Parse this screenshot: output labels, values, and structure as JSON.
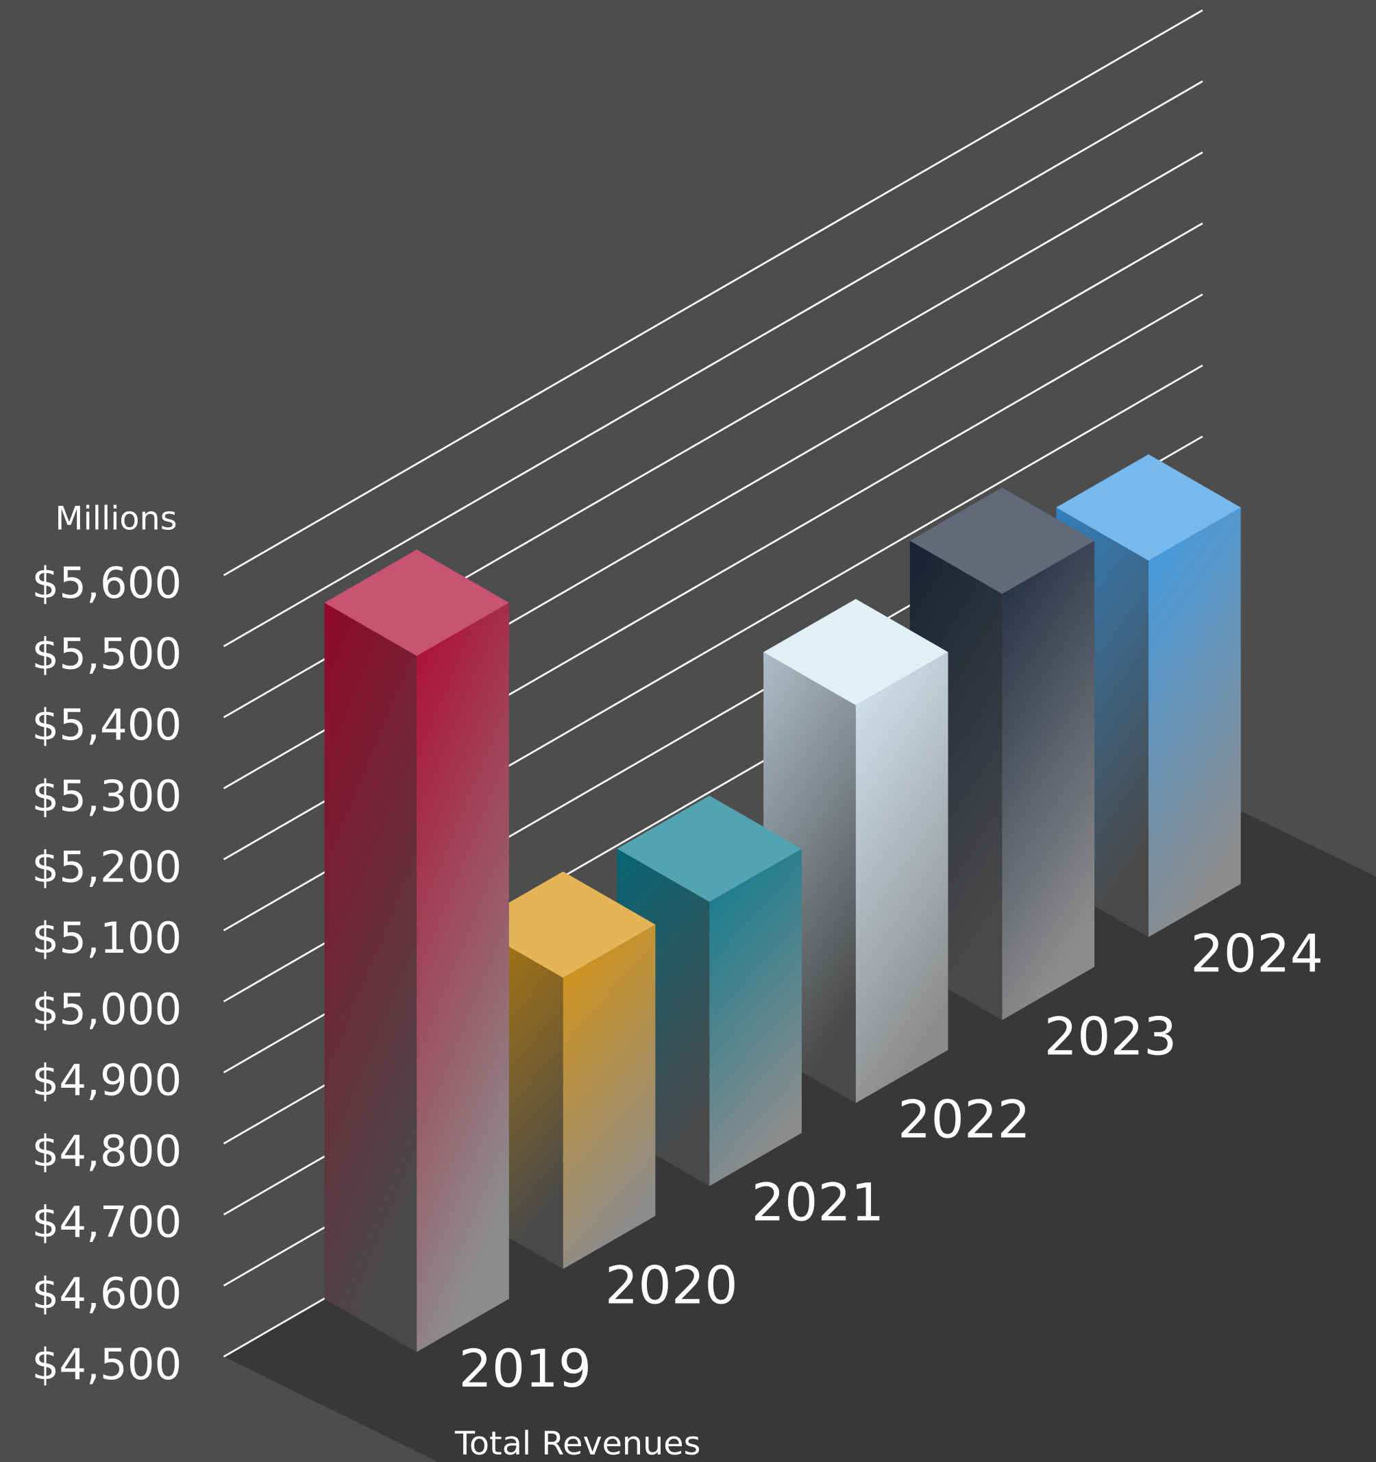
{
  "chart_data": {
    "type": "bar3d",
    "unit_label": "Millions",
    "x_label": "Total Revenues",
    "categories": [
      "2019",
      "2020",
      "2021",
      "2022",
      "2023",
      "2024"
    ],
    "values": [
      5480,
      4910,
      4900,
      5060,
      5100,
      5030
    ],
    "colors": [
      "#b00a35",
      "#d9940e",
      "#0a7b8f",
      "#d4e8f4",
      "#1e2a40",
      "#3d9be6"
    ],
    "ylim": [
      4500,
      5600
    ],
    "yticks": [
      {
        "value": 4500,
        "label": "$4,500"
      },
      {
        "value": 4600,
        "label": "$4,600"
      },
      {
        "value": 4700,
        "label": "$4,700"
      },
      {
        "value": 4800,
        "label": "$4,800"
      },
      {
        "value": 4900,
        "label": "$4,900"
      },
      {
        "value": 5000,
        "label": "$5,000"
      },
      {
        "value": 5100,
        "label": "$5,100"
      },
      {
        "value": 5200,
        "label": "$5,200"
      },
      {
        "value": 5300,
        "label": "$5,300"
      },
      {
        "value": 5400,
        "label": "$5,400"
      },
      {
        "value": 5500,
        "label": "$5,500"
      },
      {
        "value": 5600,
        "label": "$5,600"
      }
    ],
    "grid": true
  }
}
